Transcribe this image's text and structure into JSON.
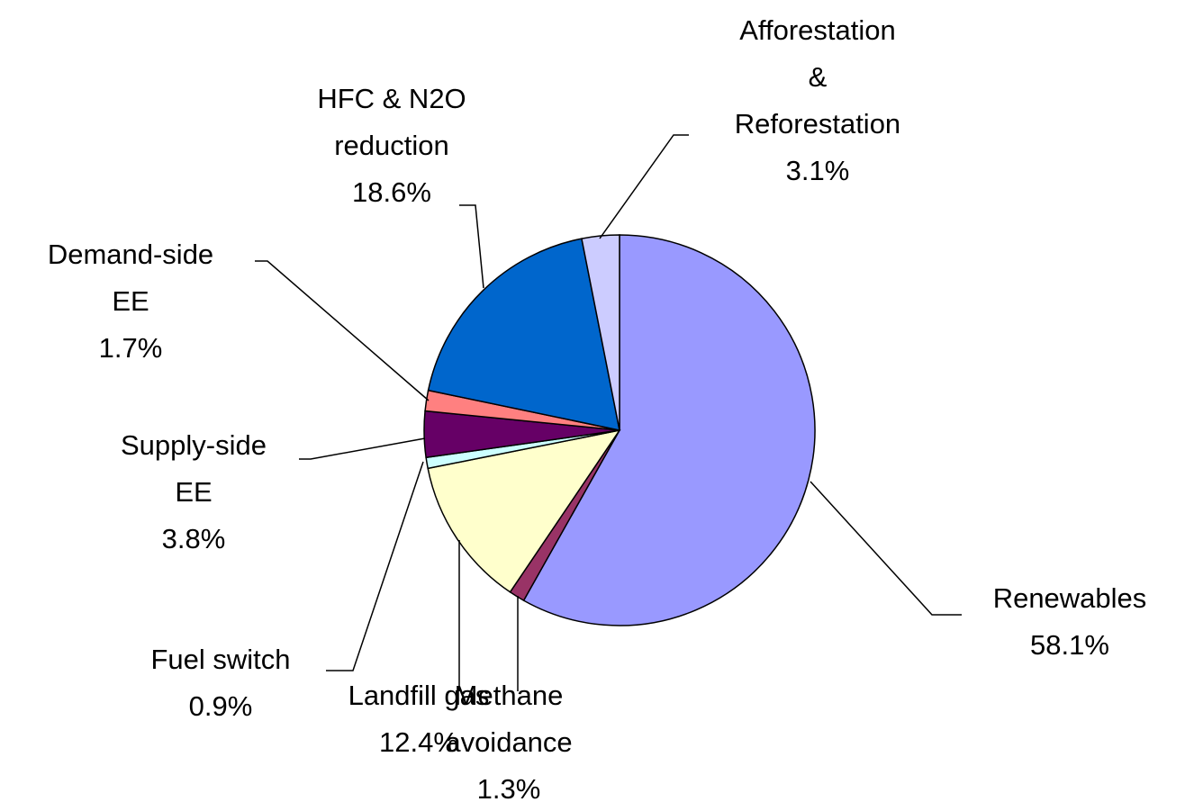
{
  "chart_data": {
    "type": "pie",
    "categories": [
      "Renewables",
      "Methane avoidance",
      "Landfill gas",
      "Fuel switch",
      "Supply-side EE",
      "Demand-side EE",
      "HFC & N2O reduction",
      "Afforestation & Reforestation"
    ],
    "values": [
      58.1,
      1.3,
      12.4,
      0.9,
      3.8,
      1.7,
      18.6,
      3.1
    ],
    "value_labels": [
      "58.1%",
      "1.3%",
      "12.4%",
      "0.9%",
      "3.8%",
      "1.7%",
      "18.6%",
      "3.1%"
    ],
    "colors": [
      "#9999ff",
      "#993366",
      "#ffffcc",
      "#ccffff",
      "#660066",
      "#ff8080",
      "#0066cc",
      "#ccccff"
    ]
  }
}
